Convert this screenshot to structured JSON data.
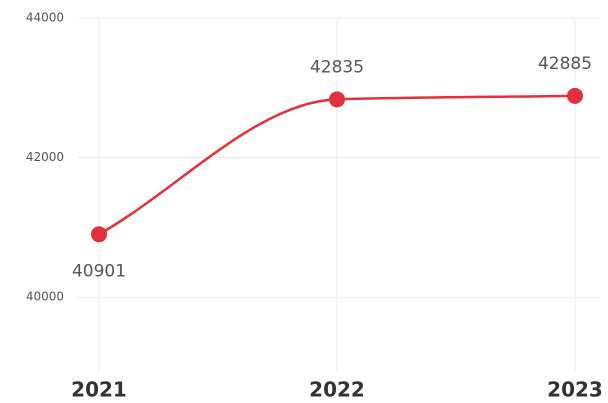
{
  "chart_data": {
    "type": "line",
    "categories": [
      "2021",
      "2022",
      "2023"
    ],
    "series": [
      {
        "color": "#e0323c",
        "values": [
          40901,
          42835,
          42885
        ]
      }
    ],
    "ylim": [
      39000,
      44000
    ],
    "yticks": [
      40000,
      42000,
      44000
    ],
    "grid": true
  }
}
